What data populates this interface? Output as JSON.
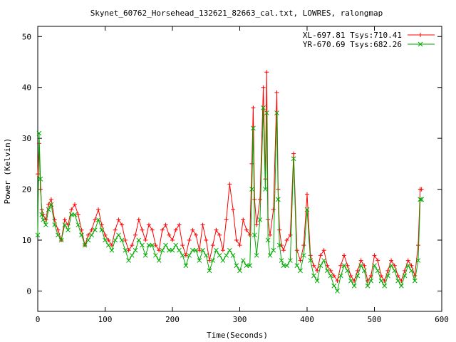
{
  "chart_data": {
    "type": "line",
    "title": "Skynet_60762_Horsehead_132621_82663_cal.txt, LOWRES, ralongmap",
    "xlabel": "Time(Seconds)",
    "ylabel": "Power (Kelvin)",
    "xlim": [
      0,
      600
    ],
    "ylim": [
      -4,
      52
    ],
    "xticks": [
      0,
      100,
      200,
      300,
      400,
      500,
      600
    ],
    "yticks": [
      0,
      10,
      20,
      30,
      40,
      50
    ],
    "grid": false,
    "legend_position": "top-right",
    "series": [
      {
        "name": "XL-697.81 Tsys:710.41",
        "color": "#ff0000",
        "marker": "plus",
        "x": [
          0,
          2,
          4,
          6,
          8,
          12,
          16,
          20,
          25,
          30,
          35,
          40,
          45,
          50,
          55,
          60,
          65,
          70,
          75,
          80,
          85,
          90,
          95,
          100,
          105,
          110,
          115,
          120,
          125,
          130,
          135,
          140,
          145,
          150,
          155,
          160,
          165,
          170,
          175,
          180,
          185,
          190,
          195,
          200,
          205,
          210,
          215,
          220,
          225,
          230,
          235,
          240,
          245,
          250,
          255,
          260,
          265,
          270,
          275,
          280,
          285,
          290,
          295,
          300,
          305,
          310,
          315,
          318,
          320,
          322,
          325,
          330,
          335,
          338,
          340,
          342,
          345,
          350,
          355,
          357,
          359,
          362,
          365,
          370,
          375,
          380,
          385,
          390,
          395,
          400,
          405,
          410,
          415,
          420,
          425,
          430,
          435,
          440,
          445,
          450,
          455,
          460,
          465,
          470,
          475,
          480,
          485,
          490,
          495,
          500,
          505,
          510,
          515,
          520,
          525,
          530,
          535,
          540,
          545,
          550,
          555,
          560,
          565,
          568,
          570
        ],
        "values": [
          23,
          29,
          20,
          16,
          15,
          14,
          17,
          18,
          14,
          12,
          10,
          14,
          13,
          16,
          17,
          15,
          12,
          9,
          11,
          12,
          14,
          16,
          13,
          11,
          10,
          9,
          12,
          14,
          13,
          10,
          8,
          9,
          11,
          14,
          12,
          10,
          13,
          12,
          9,
          8,
          12,
          13,
          11,
          10,
          12,
          13,
          9,
          7,
          10,
          12,
          11,
          8,
          13,
          10,
          6,
          9,
          12,
          11,
          8,
          14,
          21,
          16,
          10,
          9,
          14,
          12,
          11,
          25,
          36,
          18,
          13,
          18,
          40,
          22,
          43,
          14,
          11,
          16,
          39,
          20,
          12,
          9,
          8,
          10,
          11,
          27,
          8,
          6,
          9,
          19,
          7,
          5,
          4,
          7,
          8,
          5,
          4,
          3,
          2,
          5,
          7,
          5,
          3,
          2,
          4,
          6,
          5,
          2,
          3,
          7,
          6,
          3,
          2,
          4,
          6,
          5,
          3,
          2,
          4,
          6,
          5,
          3,
          9,
          20,
          20
        ]
      },
      {
        "name": "YR-670.69 Tsys:682.26",
        "color": "#00aa00",
        "marker": "x",
        "x": [
          0,
          2,
          4,
          6,
          8,
          12,
          16,
          20,
          25,
          30,
          35,
          40,
          45,
          50,
          55,
          60,
          65,
          70,
          75,
          80,
          85,
          90,
          95,
          100,
          105,
          110,
          115,
          120,
          125,
          130,
          135,
          140,
          145,
          150,
          155,
          160,
          165,
          170,
          175,
          180,
          185,
          190,
          195,
          200,
          205,
          210,
          215,
          220,
          225,
          230,
          235,
          240,
          245,
          250,
          255,
          260,
          265,
          270,
          275,
          280,
          285,
          290,
          295,
          300,
          305,
          310,
          315,
          318,
          320,
          322,
          325,
          330,
          335,
          338,
          340,
          342,
          345,
          350,
          355,
          357,
          359,
          362,
          365,
          370,
          375,
          380,
          385,
          390,
          395,
          400,
          405,
          410,
          415,
          420,
          425,
          430,
          435,
          440,
          445,
          450,
          455,
          460,
          465,
          470,
          475,
          480,
          485,
          490,
          495,
          500,
          505,
          510,
          515,
          520,
          525,
          530,
          535,
          540,
          545,
          550,
          555,
          560,
          565,
          568,
          570
        ],
        "values": [
          11,
          31,
          22,
          15,
          14,
          13,
          16,
          17,
          13,
          11,
          10,
          13,
          12,
          15,
          15,
          13,
          11,
          9,
          10,
          11,
          12,
          14,
          12,
          10,
          9,
          8,
          10,
          11,
          10,
          8,
          6,
          7,
          8,
          10,
          9,
          7,
          9,
          9,
          7,
          6,
          8,
          9,
          8,
          8,
          9,
          8,
          7,
          5,
          7,
          8,
          8,
          6,
          8,
          7,
          4,
          6,
          8,
          7,
          6,
          7,
          8,
          7,
          5,
          4,
          6,
          5,
          5,
          20,
          32,
          11,
          7,
          14,
          36,
          20,
          35,
          10,
          7,
          8,
          35,
          18,
          9,
          6,
          5,
          5,
          6,
          26,
          5,
          4,
          7,
          16,
          6,
          3,
          2,
          5,
          6,
          4,
          3,
          1,
          0,
          3,
          5,
          4,
          2,
          1,
          3,
          5,
          4,
          1,
          2,
          5,
          4,
          2,
          1,
          3,
          5,
          4,
          2,
          1,
          3,
          5,
          4,
          2,
          6,
          18,
          18
        ]
      }
    ]
  }
}
